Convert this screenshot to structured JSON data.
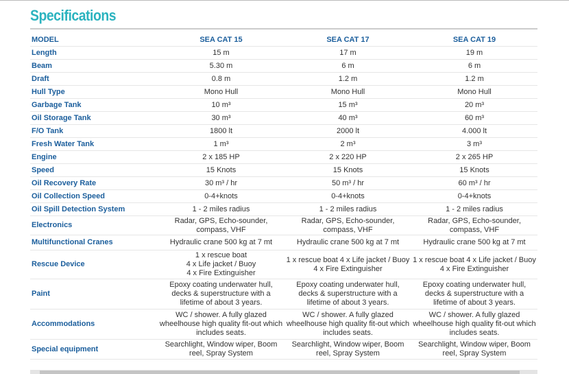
{
  "header": {
    "title": "Specifications"
  },
  "table": {
    "columns": [
      "MODEL",
      "SEA CAT 15",
      "SEA CAT 17",
      "SEA CAT 19"
    ],
    "rows": [
      [
        "Length",
        "15 m",
        "17 m",
        "19 m"
      ],
      [
        "Beam",
        "5.30 m",
        "6 m",
        "6 m"
      ],
      [
        "Draft",
        "0.8 m",
        "1.2 m",
        "1.2 m"
      ],
      [
        "Hull Type",
        "Mono Hull",
        "Mono Hull",
        "Mono Hull"
      ],
      [
        "Garbage Tank",
        "10 m³",
        "15 m³",
        "20 m³"
      ],
      [
        "Oil Storage Tank",
        "30 m³",
        "40 m³",
        "60 m³"
      ],
      [
        "F/O Tank",
        "1800 lt",
        "2000 lt",
        "4.000 lt"
      ],
      [
        "Fresh Water Tank",
        "1 m³",
        "2 m³",
        "3 m³"
      ],
      [
        "Engine",
        "2 x 185 HP",
        "2 x 220 HP",
        "2 x 265 HP"
      ],
      [
        "Speed",
        "15 Knots",
        "15 Knots",
        "15 Knots"
      ],
      [
        "Oil Recovery Rate",
        "30 m³ / hr",
        "50 m³ / hr",
        "60 m³ / hr"
      ],
      [
        "Oil Collection Speed",
        "0-4+knots",
        "0-4+knots",
        "0-4+knots"
      ],
      [
        "Oil Spill Detection System",
        "1 - 2 miles radius",
        "1 - 2 miles radius",
        "1 - 2 miles radius"
      ],
      [
        "Electronics",
        "Radar, GPS, Echo-sounder, compass, VHF",
        "Radar, GPS, Echo-sounder, compass, VHF",
        "Radar, GPS, Echo-sounder, compass, VHF"
      ],
      [
        "Multifunctional Cranes",
        "Hydraulic crane 500 kg at 7 mt",
        "Hydraulic crane 500 kg at 7 mt",
        "Hydraulic crane 500 kg at 7 mt"
      ],
      [
        "Rescue Device",
        [
          "1 x rescue boat",
          "4 x Life jacket / Buoy",
          "4 x Fire Extinguisher"
        ],
        "1 x rescue boat 4 x Life jacket / Buoy 4 x Fire Extinguisher",
        "1 x rescue boat 4 x Life jacket / Buoy 4 x Fire Extinguisher"
      ],
      [
        "Paint",
        "Epoxy coating underwater hull, decks & superstructure with a lifetime of about 3 years.",
        "Epoxy coating underwater hull, decks & superstructure with a lifetime of about 3 years.",
        "Epoxy coating underwater hull, decks & superstructure with a lifetime of about 3 years."
      ],
      [
        "Accommodations",
        "WC / shower. A fully glazed wheelhouse high quality fit-out which includes seats.",
        "WC / shower. A fully glazed wheelhouse high quality fit-out which includes seats.",
        "WC / shower. A fully glazed wheelhouse high quality fit-out which includes seats."
      ],
      [
        "Special equipment",
        "Searchlight, Window wiper, Boom reel, Spray System",
        "Searchlight, Window wiper, Boom reel, Spray System",
        "Searchlight, Window wiper, Boom reel, Spray System"
      ]
    ]
  }
}
